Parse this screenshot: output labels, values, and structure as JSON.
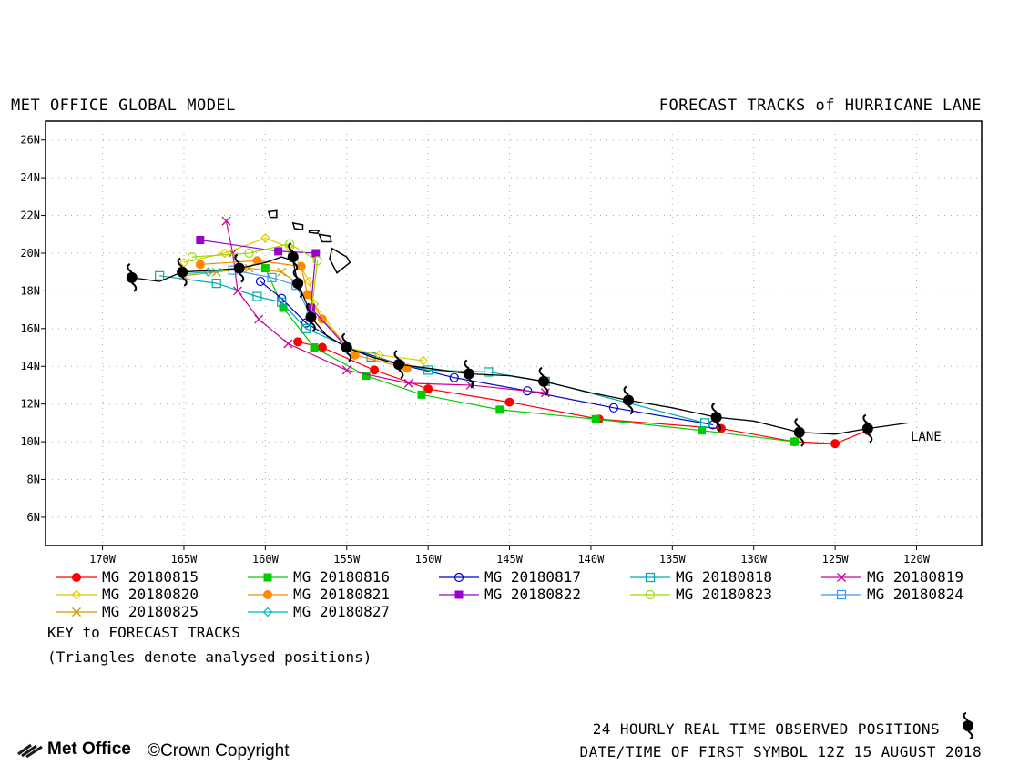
{
  "header": {
    "left_title": "MET OFFICE GLOBAL MODEL",
    "right_title": "FORECAST TRACKS of HURRICANE LANE"
  },
  "map": {
    "x_ticks": [
      "170W",
      "165W",
      "160W",
      "155W",
      "150W",
      "145W",
      "140W",
      "135W",
      "130W",
      "125W",
      "120W"
    ],
    "x_tick_values": [
      -170,
      -165,
      -160,
      -155,
      -150,
      -145,
      -140,
      -135,
      -130,
      -125,
      -120
    ],
    "y_ticks": [
      "6N",
      "8N",
      "10N",
      "12N",
      "14N",
      "16N",
      "18N",
      "20N",
      "22N",
      "24N",
      "26N"
    ],
    "y_tick_values": [
      6,
      8,
      10,
      12,
      14,
      16,
      18,
      20,
      22,
      24,
      26
    ],
    "lon_range": [
      -173.5,
      -116.0
    ],
    "lat_range": [
      4.5,
      27.0
    ],
    "grid": "dotted",
    "storm_label": "LANE",
    "observed_track": [
      [
        -120.5,
        11.0
      ],
      [
        -123,
        10.7
      ],
      [
        -125,
        10.4
      ],
      [
        -127.2,
        10.5
      ],
      [
        -130,
        11.1
      ],
      [
        -132.3,
        11.3
      ],
      [
        -135,
        11.8
      ],
      [
        -137.7,
        12.2
      ],
      [
        -140,
        12.6
      ],
      [
        -142.9,
        13.2
      ],
      [
        -145,
        13.5
      ],
      [
        -147.5,
        13.6
      ],
      [
        -150,
        13.9
      ],
      [
        -151.8,
        14.1
      ],
      [
        -153.5,
        14.5
      ],
      [
        -155,
        15.0
      ],
      [
        -156.2,
        15.6
      ],
      [
        -157.2,
        16.6
      ],
      [
        -157.5,
        17.4
      ],
      [
        -158,
        18.4
      ],
      [
        -158.3,
        19.6
      ],
      [
        -159,
        19.8
      ],
      [
        -160,
        19.5
      ],
      [
        -161.6,
        19.2
      ],
      [
        -163,
        19.1
      ],
      [
        -165.1,
        19.0
      ],
      [
        -166.5,
        18.5
      ],
      [
        -168.2,
        18.7
      ]
    ],
    "observed_symbols": [
      [
        -123,
        10.7
      ],
      [
        -127.2,
        10.5
      ],
      [
        -132.3,
        11.3
      ],
      [
        -137.7,
        12.2
      ],
      [
        -142.9,
        13.2
      ],
      [
        -147.5,
        13.6
      ],
      [
        -151.8,
        14.1
      ],
      [
        -155,
        15.0
      ],
      [
        -157.2,
        16.6
      ],
      [
        -158,
        18.4
      ],
      [
        -158.3,
        19.8
      ],
      [
        -161.6,
        19.2
      ],
      [
        -165.1,
        19.0
      ],
      [
        -168.2,
        18.7
      ]
    ]
  },
  "chart_data": {
    "type": "scatter",
    "title": "FORECAST TRACKS of HURRICANE LANE",
    "xlabel": "",
    "ylabel": "",
    "series": [
      {
        "name": "MG 20180815",
        "color": "#ff0000",
        "marker": "circle-filled",
        "points": [
          [
            -123,
            10.6
          ],
          [
            -125,
            9.9
          ],
          [
            -127.5,
            10.0
          ],
          [
            -132,
            10.7
          ],
          [
            -139.5,
            11.2
          ],
          [
            -145,
            12.1
          ],
          [
            -150,
            12.8
          ],
          [
            -153.3,
            13.8
          ],
          [
            -156.5,
            15.0
          ],
          [
            -158,
            15.3
          ]
        ]
      },
      {
        "name": "MG 20180816",
        "color": "#00cc00",
        "marker": "square-filled",
        "points": [
          [
            -127.5,
            10.0
          ],
          [
            -133.2,
            10.6
          ],
          [
            -139.7,
            11.2
          ],
          [
            -145.6,
            11.7
          ],
          [
            -150.4,
            12.5
          ],
          [
            -153.8,
            13.5
          ],
          [
            -157,
            15.0
          ],
          [
            -158.9,
            17.1
          ],
          [
            -160,
            19.2
          ]
        ]
      },
      {
        "name": "MG 20180817",
        "color": "#0000cc",
        "marker": "circle-open",
        "points": [
          [
            -132.5,
            10.9
          ],
          [
            -138.6,
            11.8
          ],
          [
            -143.9,
            12.7
          ],
          [
            -148.4,
            13.4
          ],
          [
            -151.7,
            14.1
          ],
          [
            -155,
            15.0
          ],
          [
            -157.5,
            16.3
          ],
          [
            -159,
            17.6
          ],
          [
            -160.3,
            18.5
          ]
        ]
      },
      {
        "name": "MG 20180818",
        "color": "#00aaaa",
        "marker": "square-open",
        "points": [
          [
            -133,
            11.0
          ],
          [
            -142.8,
            13.2
          ],
          [
            -146.3,
            13.7
          ],
          [
            -150,
            13.8
          ],
          [
            -153.5,
            14.5
          ],
          [
            -157.5,
            16.0
          ],
          [
            -159,
            17.4
          ],
          [
            -160.5,
            17.7
          ],
          [
            -163,
            18.4
          ],
          [
            -166.5,
            18.8
          ]
        ]
      },
      {
        "name": "MG 20180819",
        "color": "#cc0099",
        "marker": "x",
        "points": [
          [
            -142.8,
            12.6
          ],
          [
            -147.4,
            13.0
          ],
          [
            -151.2,
            13.1
          ],
          [
            -155,
            13.8
          ],
          [
            -158.6,
            15.2
          ],
          [
            -160.4,
            16.5
          ],
          [
            -161.7,
            18.0
          ],
          [
            -162,
            20.0
          ],
          [
            -162.4,
            21.7
          ]
        ]
      },
      {
        "name": "MG 20180820",
        "color": "#ddcc00",
        "marker": "diamond-open",
        "points": [
          [
            -150.3,
            14.3
          ],
          [
            -153,
            14.6
          ],
          [
            -155,
            15.0
          ],
          [
            -157,
            17.3
          ],
          [
            -157.3,
            18.5
          ],
          [
            -158.5,
            20.3
          ],
          [
            -160,
            20.8
          ],
          [
            -162.5,
            20.0
          ],
          [
            -165,
            19.5
          ]
        ]
      },
      {
        "name": "MG 20180821",
        "color": "#ff8800",
        "marker": "circle-filled",
        "points": [
          [
            -151.3,
            13.9
          ],
          [
            -154.5,
            14.6
          ],
          [
            -156.5,
            16.5
          ],
          [
            -157.4,
            17.8
          ],
          [
            -157.8,
            19.3
          ],
          [
            -160.5,
            19.6
          ],
          [
            -164,
            19.4
          ]
        ]
      },
      {
        "name": "MG 20180822",
        "color": "#9900cc",
        "marker": "square-filled",
        "points": [
          [
            -155,
            15.0
          ],
          [
            -157.2,
            17.1
          ],
          [
            -156.9,
            20.0
          ],
          [
            -159.2,
            20.1
          ],
          [
            -164,
            20.7
          ]
        ]
      },
      {
        "name": "MG 20180823",
        "color": "#99dd00",
        "marker": "circle-open",
        "points": [
          [
            -157.2,
            16.6
          ],
          [
            -156.8,
            19.6
          ],
          [
            -158.5,
            20.5
          ],
          [
            -161,
            20.0
          ],
          [
            -164.5,
            19.8
          ]
        ]
      },
      {
        "name": "MG 20180824",
        "color": "#3399ff",
        "marker": "square-open",
        "points": [
          [
            -157.2,
            16.6
          ],
          [
            -158.1,
            18.3
          ],
          [
            -159.6,
            18.7
          ],
          [
            -162,
            19.1
          ]
        ]
      },
      {
        "name": "MG 20180825",
        "color": "#cc9900",
        "marker": "x",
        "points": [
          [
            -158,
            18.4
          ],
          [
            -159,
            19.0
          ],
          [
            -161,
            19.2
          ],
          [
            -163,
            19.0
          ],
          [
            -165,
            18.8
          ]
        ]
      },
      {
        "name": "MG 20180827",
        "color": "#00bbbb",
        "marker": "diamond-open",
        "points": [
          [
            -161.6,
            19.2
          ],
          [
            -163.5,
            19.0
          ],
          [
            -165.1,
            18.9
          ]
        ]
      }
    ]
  },
  "legend": {
    "key_title": "KEY to FORECAST TRACKS",
    "key_note": "(Triangles denote analysed positions)"
  },
  "footer": {
    "observed_line": "24 HOURLY REAL TIME OBSERVED POSITIONS",
    "first_symbol_line": "DATE/TIME OF FIRST SYMBOL 12Z 15 AUGUST 2018",
    "brand": "Met Office",
    "copyright": "©Crown Copyright"
  },
  "colors": {
    "observed_track": "#000000",
    "frame": "#000000",
    "grid": "#999999"
  }
}
